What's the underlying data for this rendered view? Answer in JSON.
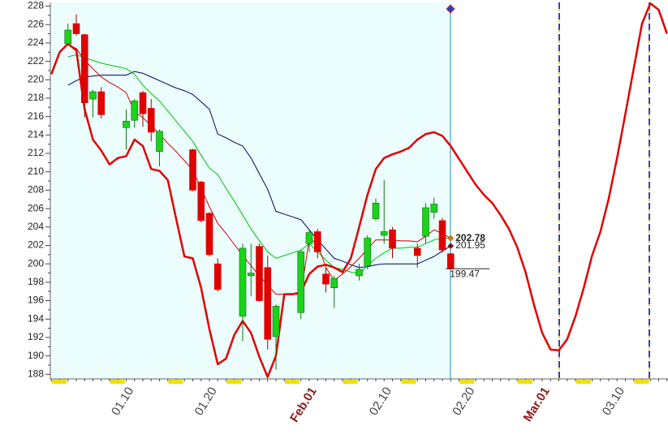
{
  "chart_data": {
    "type": "candlestick",
    "categories": [
      null,
      null,
      null,
      null,
      null,
      null,
      null,
      null,
      null,
      "01.10",
      null,
      null,
      null,
      null,
      null,
      null,
      null,
      null,
      null,
      "01.20",
      null,
      null,
      null,
      null,
      null,
      null,
      null,
      null,
      null,
      null,
      null,
      "Feb.01",
      null,
      null,
      null,
      null,
      null,
      null,
      null,
      null,
      "02.10",
      null,
      null,
      null,
      null,
      null,
      null,
      null,
      null,
      null,
      "02.20",
      null,
      null,
      null,
      null,
      null,
      null,
      null,
      null,
      "Mar.01",
      null,
      null,
      null,
      null,
      null,
      null,
      null,
      null,
      "03.10",
      null,
      null,
      null,
      null,
      null,
      null
    ],
    "ylim": [
      187.5,
      228.4
    ],
    "yticks": [
      188,
      190,
      192,
      194,
      196,
      198,
      200,
      202,
      204,
      206,
      208,
      210,
      212,
      214,
      216,
      218,
      220,
      222,
      224,
      226,
      228
    ],
    "candles": {
      "up_color": "#19d419",
      "down_color": "#e00000",
      "open": [
        null,
        null,
        223.9,
        226.1,
        224.9,
        217.9,
        218.7,
        null,
        null,
        214.8,
        215.6,
        218.6,
        216.9,
        212.2,
        null,
        null,
        null,
        212.4,
        208.9,
        205.5,
        200.0,
        null,
        null,
        194.3,
        198.7,
        201.9,
        199.6,
        192.1,
        null,
        null,
        194.7,
        202.2,
        203.5,
        198.9,
        197.4,
        null,
        null,
        198.7,
        199.8,
        204.9,
        203.1,
        203.7,
        null,
        null,
        201.7,
        203.0,
        205.6,
        204.7,
        201.1,
        null,
        null,
        null,
        null,
        null,
        null,
        null,
        null,
        null,
        null,
        null,
        null,
        null,
        null,
        null,
        null,
        null,
        null,
        null,
        null,
        null,
        null,
        null,
        null,
        null,
        null
      ],
      "high": [
        null,
        null,
        226.1,
        227.1,
        225.0,
        218.9,
        219.2,
        null,
        null,
        216.8,
        217.9,
        218.8,
        217.9,
        214.6,
        null,
        null,
        null,
        212.5,
        209.0,
        205.6,
        200.6,
        null,
        null,
        202.2,
        202.2,
        202.2,
        200.9,
        195.6,
        null,
        null,
        201.5,
        203.7,
        203.8,
        199.6,
        198.7,
        null,
        null,
        200.0,
        203.1,
        207.1,
        209.1,
        204.0,
        null,
        null,
        202.2,
        206.6,
        207.2,
        205.0,
        201.2,
        null,
        null,
        null,
        null,
        null,
        null,
        null,
        null,
        null,
        null,
        null,
        null,
        null,
        null,
        null,
        null,
        null,
        null,
        null,
        null,
        null,
        null,
        null,
        null,
        null,
        null
      ],
      "low": [
        null,
        null,
        223.7,
        224.8,
        215.9,
        215.9,
        215.8,
        null,
        null,
        212.4,
        214.8,
        214.9,
        213.3,
        210.6,
        null,
        null,
        null,
        207.9,
        204.5,
        200.8,
        197.0,
        null,
        null,
        191.6,
        196.5,
        195.9,
        190.7,
        188.5,
        null,
        null,
        194.0,
        201.3,
        200.6,
        196.9,
        195.2,
        null,
        null,
        198.2,
        199.4,
        204.7,
        202.2,
        200.6,
        null,
        null,
        199.6,
        202.2,
        204.9,
        201.2,
        199.4,
        null,
        null,
        null,
        null,
        null,
        null,
        null,
        null,
        null,
        null,
        null,
        null,
        null,
        null,
        null,
        null,
        null,
        null,
        null,
        null,
        null,
        null,
        null,
        null,
        null,
        null
      ],
      "close": [
        null,
        null,
        225.4,
        225.0,
        217.5,
        218.7,
        216.2,
        null,
        null,
        215.5,
        217.7,
        216.3,
        214.3,
        214.4,
        null,
        null,
        null,
        208.0,
        204.7,
        201.0,
        197.2,
        null,
        null,
        201.7,
        199.0,
        196.0,
        191.8,
        195.4,
        null,
        null,
        201.3,
        203.4,
        201.3,
        197.8,
        198.4,
        null,
        null,
        199.4,
        202.8,
        206.6,
        203.5,
        201.7,
        null,
        null,
        200.9,
        206.1,
        206.5,
        201.5,
        199.47,
        null,
        null,
        null,
        null,
        null,
        null,
        null,
        null,
        null,
        null,
        null,
        null,
        null,
        null,
        null,
        null,
        null,
        null,
        null,
        null,
        null,
        null,
        null,
        null,
        null,
        null
      ]
    },
    "series": [
      {
        "color": "#000066",
        "label_last": true,
        "marker_color": "#8b0000",
        "values": [
          null,
          null,
          219.4,
          219.9,
          220.3,
          220.4,
          220.5,
          220.5,
          220.5,
          220.5,
          220.9,
          220.7,
          220.3,
          219.9,
          219.5,
          219.1,
          218.8,
          218.4,
          217.6,
          216.8,
          214.1,
          213.7,
          213.2,
          212.8,
          211.5,
          209.8,
          208.1,
          205.7,
          205.4,
          205.1,
          204.8,
          203.7,
          202.6,
          201.6,
          200.6,
          200.3,
          199.9,
          199.6,
          199.7,
          199.9,
          200.0,
          200.0,
          200.0,
          200.0,
          200.0,
          200.4,
          200.8,
          201.4,
          201.95,
          null,
          null,
          null,
          null,
          null,
          null,
          null,
          null,
          null,
          null,
          null,
          null,
          null,
          null,
          null,
          null,
          null,
          null,
          null,
          null,
          null,
          null,
          null,
          null,
          null,
          null
        ]
      },
      {
        "color": "#00c000",
        "label_last": true,
        "marker_color": "#d08000",
        "values": [
          null,
          null,
          222.5,
          222.7,
          222.4,
          222.1,
          221.8,
          221.6,
          221.4,
          221.2,
          220.6,
          219.4,
          218.5,
          217.7,
          216.6,
          215.5,
          214.4,
          213.3,
          211.8,
          210.4,
          209.7,
          208.2,
          206.8,
          205.3,
          203.8,
          202.5,
          201.3,
          200.6,
          200.9,
          201.2,
          201.5,
          202.2,
          201.3,
          200.4,
          199.6,
          199.4,
          199.1,
          198.9,
          199.8,
          200.6,
          201.2,
          201.7,
          201.7,
          201.8,
          201.8,
          202.2,
          202.6,
          202.8,
          202.78,
          null,
          null,
          null,
          null,
          null,
          null,
          null,
          null,
          null,
          null,
          null,
          null,
          null,
          null,
          null,
          null,
          null,
          null,
          null,
          null,
          null,
          null,
          null,
          null,
          null,
          null
        ]
      },
      {
        "color": "#d00000",
        "label_last": false,
        "values": [
          null,
          null,
          223.8,
          223.4,
          222.1,
          221.2,
          220.3,
          219.7,
          219.2,
          218.6,
          216.5,
          215.9,
          215.0,
          214.1,
          213.1,
          212.2,
          211.2,
          210.2,
          208.2,
          206.2,
          204.4,
          203.3,
          202.1,
          200.9,
          199.8,
          198.7,
          197.7,
          196.7,
          196.7,
          196.7,
          196.7,
          202.7,
          202.2,
          199.6,
          198.2,
          198.9,
          199.7,
          200.6,
          201.6,
          202.6,
          202.6,
          202.6,
          202.5,
          202.5,
          202.4,
          203.0,
          203.7,
          203.3,
          202.8,
          null,
          null,
          null,
          null,
          null,
          null,
          null,
          null,
          null,
          null,
          null,
          null,
          null,
          null,
          null,
          null,
          null,
          null,
          null,
          null,
          null,
          null,
          null,
          null,
          null,
          null
        ]
      }
    ],
    "cycle": {
      "color": "#e00000",
      "values": [
        220.6,
        223.0,
        223.9,
        223.2,
        216.8,
        213.5,
        212.3,
        210.8,
        211.5,
        211.7,
        213.5,
        212.8,
        210.3,
        210.1,
        209.1,
        204.9,
        200.8,
        200.6,
        197.4,
        192.9,
        189.1,
        189.7,
        192.3,
        193.8,
        192.5,
        189.9,
        187.7,
        190.0,
        196.7,
        196.7,
        196.9,
        198.9,
        199.7,
        199.9,
        199.6,
        199.1,
        200.6,
        204.0,
        207.5,
        210.3,
        211.5,
        211.9,
        212.2,
        212.6,
        213.5,
        214.1,
        214.3,
        213.9,
        212.8,
        211.4,
        210.0,
        208.6,
        207.5,
        206.6,
        205.3,
        203.8,
        201.8,
        199.1,
        195.6,
        192.5,
        190.7,
        190.6,
        191.8,
        194.3,
        197.4,
        200.9,
        203.5,
        207.1,
        211.5,
        216.3,
        221.2,
        226.1,
        228.3,
        227.6,
        225.0
      ]
    }
  }
}
